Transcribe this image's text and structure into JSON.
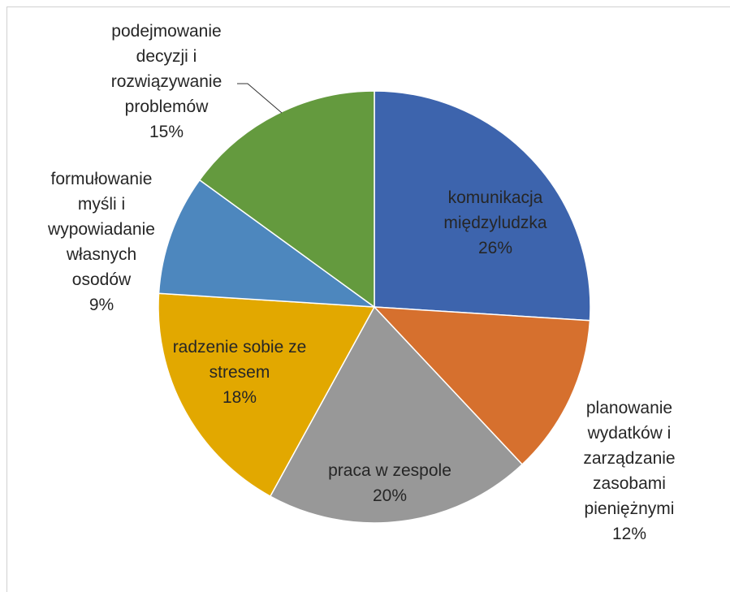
{
  "chart_data": {
    "type": "pie",
    "categories": [
      "komunikacja międzyludzka",
      "planowanie wydatków i zarządzanie zasobami pieniężnymi",
      "praca w zespole",
      "radzenie sobie ze stresem",
      "formułowanie myśli i wypowiadanie własnych osodów",
      "podejmowanie decyzji i rozwiązywanie problemów"
    ],
    "values": [
      26,
      12,
      20,
      18,
      9,
      15
    ],
    "value_labels": [
      "26%",
      "12%",
      "20%",
      "18%",
      "9%",
      "15%"
    ],
    "colors": [
      "#3d64ad",
      "#d6702e",
      "#989898",
      "#e2a800",
      "#4d87be",
      "#649a3e"
    ]
  }
}
